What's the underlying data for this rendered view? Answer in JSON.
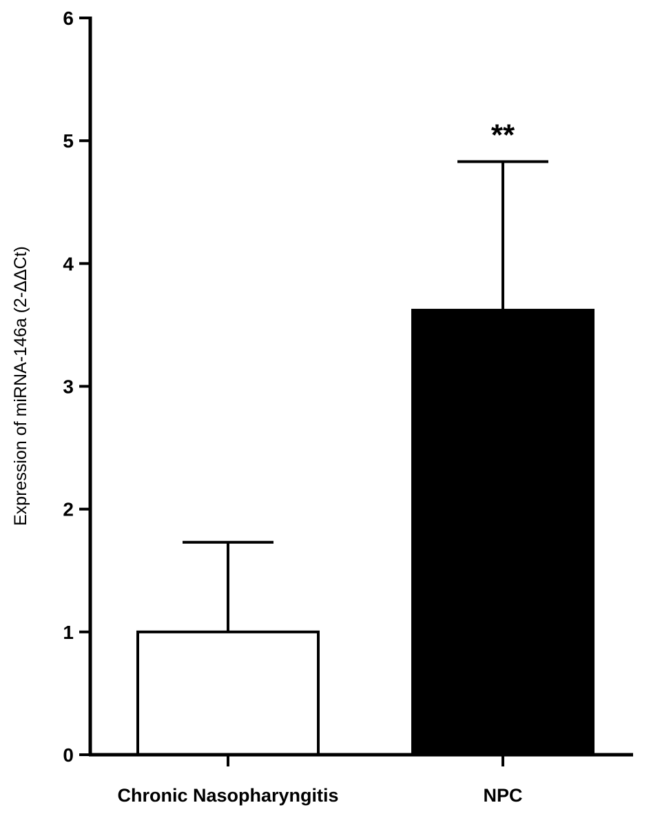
{
  "chart_data": {
    "type": "bar",
    "title": "",
    "xlabel": "",
    "ylabel": "Expression of miRNA-146a (2-ΔΔCt)",
    "ylim": [
      0,
      6
    ],
    "yticks": [
      0,
      1,
      2,
      3,
      4,
      5,
      6
    ],
    "grid": false,
    "categories": [
      "Chronic Nasopharyngitis",
      "NPC"
    ],
    "values": [
      1.0,
      3.62
    ],
    "error_upper": [
      1.73,
      4.83
    ],
    "bar_fill_colors": [
      "#ffffff",
      "#000000"
    ],
    "annotations": [
      {
        "category_index": 1,
        "text": "**"
      }
    ]
  }
}
